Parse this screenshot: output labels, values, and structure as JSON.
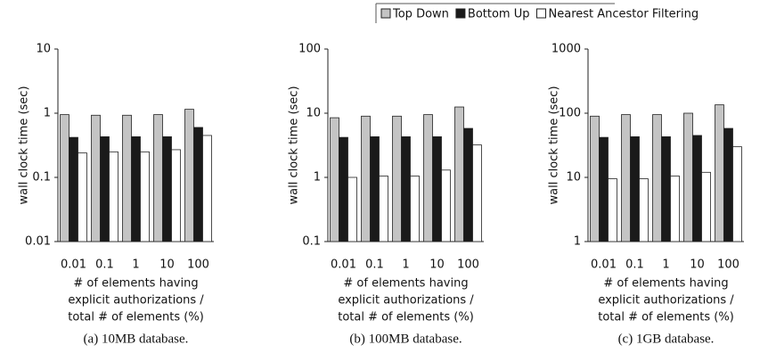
{
  "legend": [
    {
      "name": "Top Down",
      "color": "#c4c4c4"
    },
    {
      "name": "Bottom Up",
      "color": "#1a1a1a"
    },
    {
      "name": "Nearest Ancestor Filtering",
      "color": "#ffffff"
    }
  ],
  "chart_data": [
    {
      "type": "bar",
      "caption": "(a) 10MB database.",
      "y_label": "wall clock time (sec)",
      "x_label": [
        "# of elements having",
        "explicit authorizations /",
        "total # of elements (%)"
      ],
      "categories": [
        "0.01",
        "0.1",
        "1",
        "10",
        "100"
      ],
      "log_scale": true,
      "ylim": [
        0.01,
        10
      ],
      "yticks": [
        0.01,
        0.1,
        1,
        10
      ],
      "series": [
        {
          "values": [
            0.95,
            0.93,
            0.93,
            0.95,
            1.15
          ]
        },
        {
          "values": [
            0.42,
            0.43,
            0.43,
            0.43,
            0.6
          ]
        },
        {
          "values": [
            0.24,
            0.25,
            0.25,
            0.27,
            0.45
          ]
        }
      ]
    },
    {
      "type": "bar",
      "caption": "(b) 100MB database.",
      "y_label": "wall clock time (sec)",
      "x_label": [
        "# of elements having",
        "explicit authorizations /",
        "total # of elements (%)"
      ],
      "categories": [
        "0.01",
        "0.1",
        "1",
        "10",
        "100"
      ],
      "log_scale": true,
      "ylim": [
        0.1,
        100
      ],
      "yticks": [
        0.1,
        1,
        10,
        100
      ],
      "series": [
        {
          "values": [
            8.5,
            9,
            9,
            9.5,
            12.5
          ]
        },
        {
          "values": [
            4.2,
            4.3,
            4.3,
            4.3,
            5.8
          ]
        },
        {
          "values": [
            1.0,
            1.05,
            1.05,
            1.3,
            3.2
          ]
        }
      ]
    },
    {
      "type": "bar",
      "caption": "(c) 1GB database.",
      "y_label": "wall clock time (sec)",
      "x_label": [
        "# of elements having",
        "explicit authorizations /",
        "total # of elements (%)"
      ],
      "categories": [
        "0.01",
        "0.1",
        "1",
        "10",
        "100"
      ],
      "log_scale": true,
      "ylim": [
        1,
        1000
      ],
      "yticks": [
        1,
        10,
        100,
        1000
      ],
      "series": [
        {
          "values": [
            90,
            95,
            95,
            100,
            135
          ]
        },
        {
          "values": [
            42,
            43,
            43,
            45,
            58
          ]
        },
        {
          "values": [
            9.5,
            9.5,
            10.5,
            12,
            30
          ]
        }
      ]
    }
  ]
}
